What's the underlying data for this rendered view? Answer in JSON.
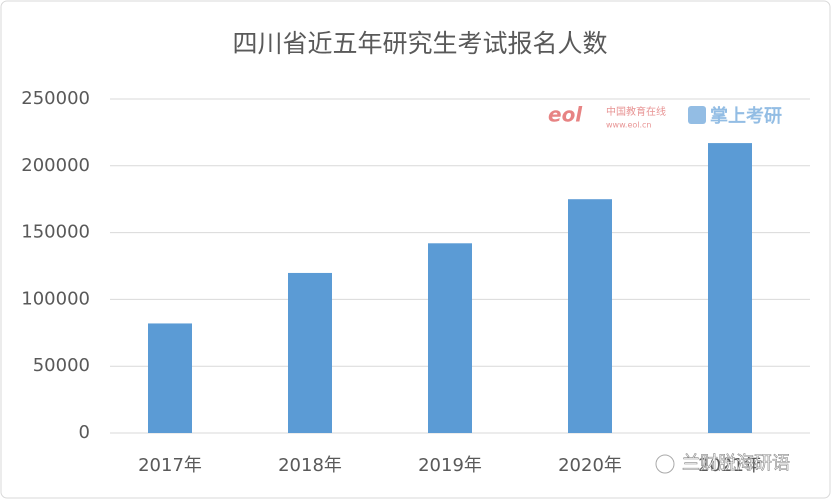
{
  "chart_data": {
    "type": "bar",
    "title": "四川省近五年研究生考试报名人数",
    "categories": [
      "2017年",
      "2018年",
      "2019年",
      "2020年",
      "2021年"
    ],
    "values": [
      82000,
      119800,
      142000,
      175000,
      217000
    ],
    "color": "#5b9bd5",
    "ylim": [
      0,
      250000
    ],
    "yticks": [
      0,
      50000,
      100000,
      150000,
      200000,
      250000
    ],
    "grid": true
  },
  "watermarks": {
    "site": "中国教育在线",
    "url": "www.eol.cn",
    "brand": "掌上考研",
    "account": "兰财脱海研语"
  }
}
